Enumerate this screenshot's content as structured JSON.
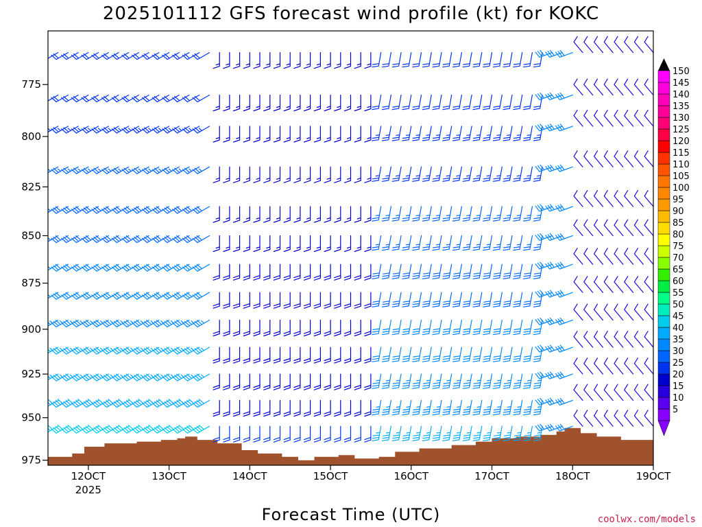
{
  "chart_data": {
    "type": "wind-profile",
    "title": "2025101112 GFS forecast wind profile (kt) for KOKC",
    "xlabel": "Forecast Time (UTC)",
    "credit": "coolwx.com/models",
    "x_ticks": [
      {
        "value": 12,
        "label": "12OCT",
        "sublabel": "2025"
      },
      {
        "value": 13,
        "label": "13OCT",
        "sublabel": ""
      },
      {
        "value": 14,
        "label": "14OCT",
        "sublabel": ""
      },
      {
        "value": 15,
        "label": "15OCT",
        "sublabel": ""
      },
      {
        "value": 16,
        "label": "16OCT",
        "sublabel": ""
      },
      {
        "value": 17,
        "label": "17OCT",
        "sublabel": ""
      },
      {
        "value": 18,
        "label": "18OCT",
        "sublabel": ""
      },
      {
        "value": 19,
        "label": "19OCT",
        "sublabel": ""
      }
    ],
    "xlim": [
      11.5,
      19.0
    ],
    "y_ticks": [
      {
        "value": 775,
        "label": "775"
      },
      {
        "value": 800,
        "label": "800"
      },
      {
        "value": 825,
        "label": "825"
      },
      {
        "value": 850,
        "label": "850"
      },
      {
        "value": 875,
        "label": "875"
      },
      {
        "value": 900,
        "label": "900"
      },
      {
        "value": 925,
        "label": "925"
      },
      {
        "value": 950,
        "label": "950"
      },
      {
        "value": 975,
        "label": "975"
      }
    ],
    "ylim_hpa": [
      750,
      978
    ],
    "y_scale": "log",
    "time_step_days": 0.125,
    "levels_hpa": [
      760,
      780,
      795,
      815,
      835,
      850,
      865,
      880,
      895,
      910,
      925,
      940,
      955
    ],
    "wind_key": [
      {
        "time_start": 11.5,
        "time_end": 13.6,
        "dir": 240,
        "speed_top": 20,
        "speed_low": 40
      },
      {
        "time_start": 13.6,
        "time_end": 15.6,
        "dir": 180,
        "speed_top": 15,
        "speed_low": 20
      },
      {
        "time_start": 15.6,
        "time_end": 17.7,
        "dir": 190,
        "speed_top": 20,
        "speed_low": 35
      },
      {
        "time_start": 17.7,
        "time_end": 18.1,
        "dir": 250,
        "speed_top": 30,
        "speed_low": 30
      },
      {
        "time_start": 18.1,
        "time_end": 19.0,
        "dir": 320,
        "speed_top": 10,
        "speed_low": 10
      }
    ],
    "surface_pressure": [
      {
        "t": 11.5,
        "p": 973
      },
      {
        "t": 11.8,
        "p": 971
      },
      {
        "t": 11.95,
        "p": 967
      },
      {
        "t": 12.2,
        "p": 965
      },
      {
        "t": 12.6,
        "p": 964
      },
      {
        "t": 12.9,
        "p": 963
      },
      {
        "t": 13.1,
        "p": 962
      },
      {
        "t": 13.2,
        "p": 961
      },
      {
        "t": 13.35,
        "p": 963
      },
      {
        "t": 13.6,
        "p": 965
      },
      {
        "t": 13.9,
        "p": 969
      },
      {
        "t": 14.1,
        "p": 971
      },
      {
        "t": 14.4,
        "p": 973
      },
      {
        "t": 14.6,
        "p": 975
      },
      {
        "t": 14.8,
        "p": 973
      },
      {
        "t": 15.1,
        "p": 972
      },
      {
        "t": 15.3,
        "p": 974
      },
      {
        "t": 15.6,
        "p": 973
      },
      {
        "t": 15.8,
        "p": 970
      },
      {
        "t": 16.1,
        "p": 968
      },
      {
        "t": 16.5,
        "p": 966
      },
      {
        "t": 16.8,
        "p": 964
      },
      {
        "t": 17.0,
        "p": 962
      },
      {
        "t": 17.3,
        "p": 961
      },
      {
        "t": 17.6,
        "p": 960
      },
      {
        "t": 17.8,
        "p": 958
      },
      {
        "t": 17.9,
        "p": 956
      },
      {
        "t": 18.1,
        "p": 959
      },
      {
        "t": 18.3,
        "p": 961
      },
      {
        "t": 18.6,
        "p": 963
      },
      {
        "t": 19.0,
        "p": 965
      }
    ],
    "surface_color": "#a0522d",
    "colorbar": {
      "min": 0,
      "labels": [
        5,
        10,
        15,
        20,
        25,
        30,
        35,
        40,
        45,
        50,
        55,
        60,
        65,
        70,
        75,
        80,
        85,
        90,
        95,
        100,
        105,
        110,
        115,
        120,
        125,
        130,
        135,
        140,
        145,
        150
      ],
      "colors": [
        "#8800ff",
        "#5a00ee",
        "#2800dd",
        "#0000cc",
        "#0033ee",
        "#0066ff",
        "#0088ff",
        "#00aaff",
        "#00ccee",
        "#00eebb",
        "#00ff88",
        "#00ee44",
        "#33ee00",
        "#88ff00",
        "#ccff00",
        "#ffff00",
        "#ffdd00",
        "#ffbb00",
        "#ff9900",
        "#ff8800",
        "#ff7700",
        "#ff5500",
        "#ff3300",
        "#ff0000",
        "#ff0044",
        "#ff0077",
        "#ff0099",
        "#ff00bb",
        "#ff00dd",
        "#ff00ff"
      ],
      "top_color": "#000000",
      "bottom_color": "#8800ff"
    }
  }
}
